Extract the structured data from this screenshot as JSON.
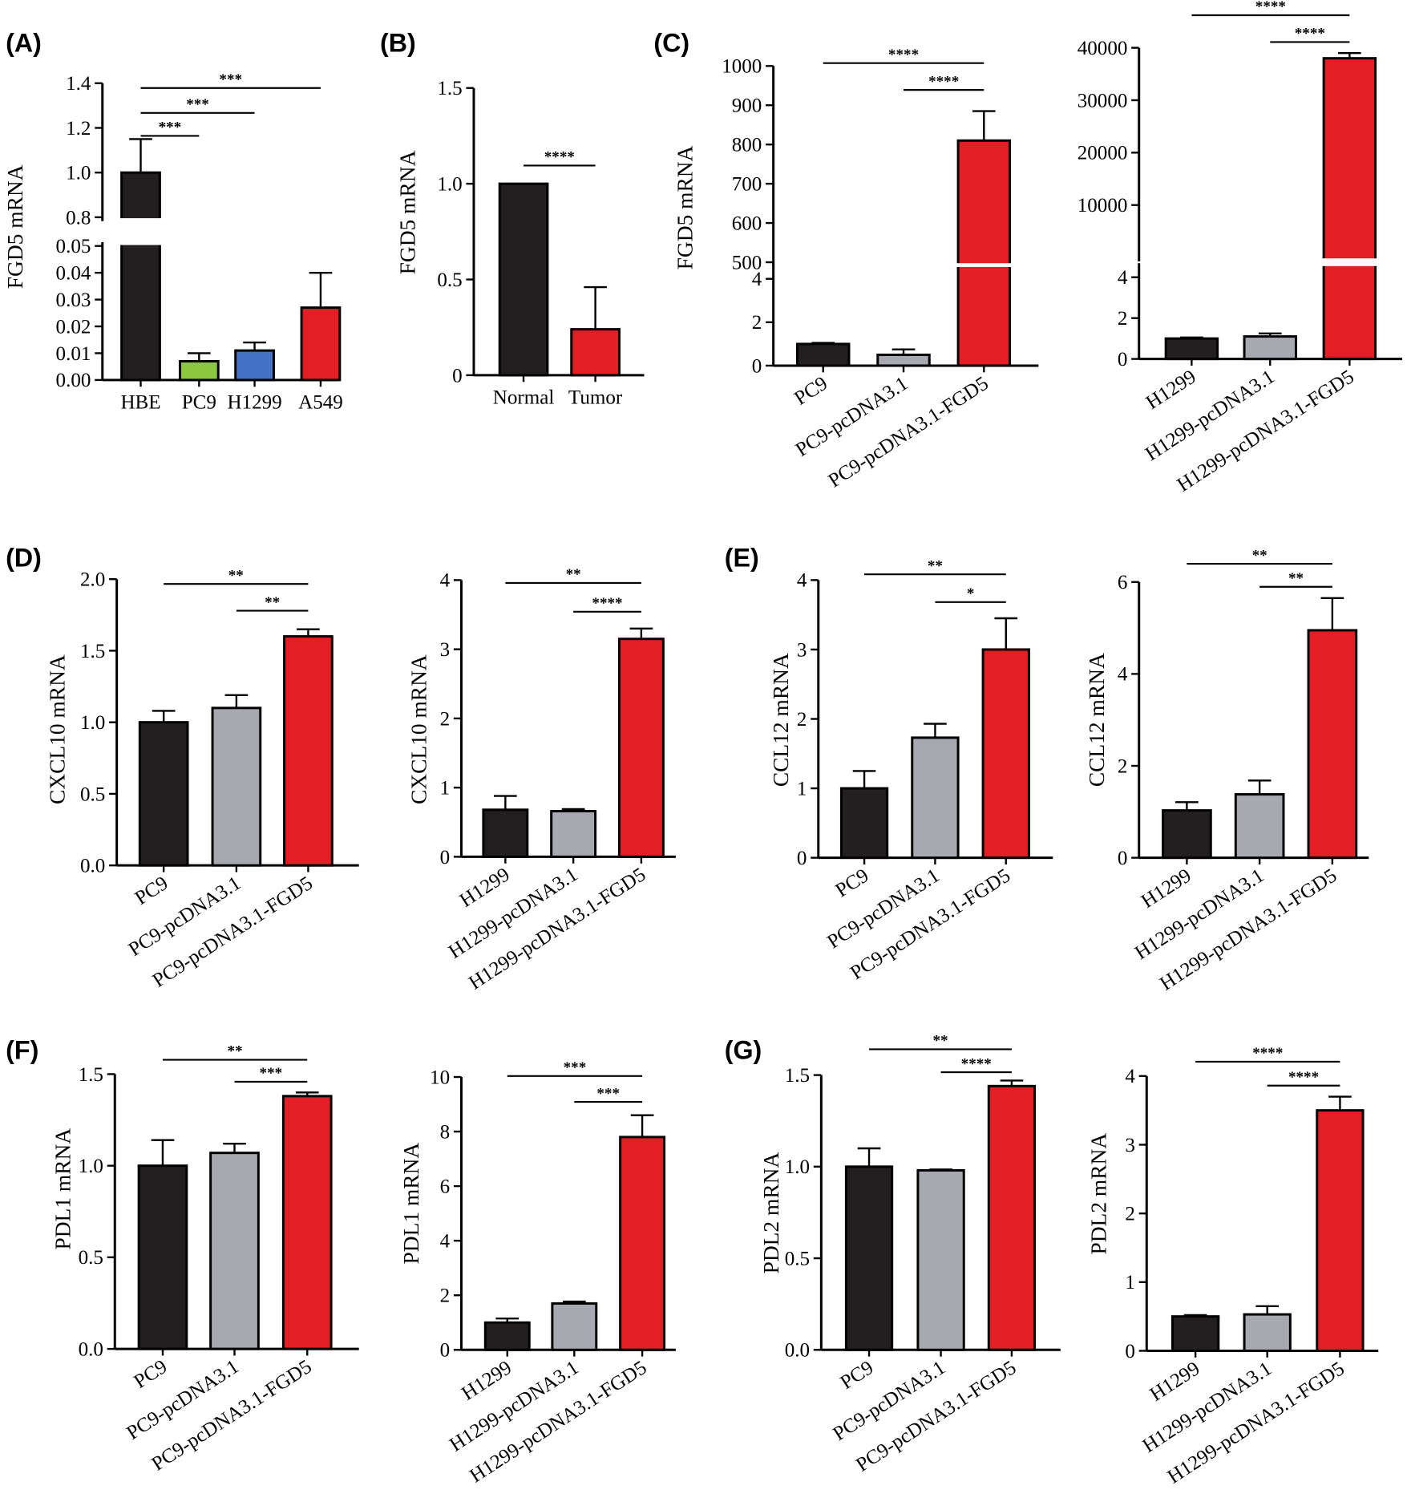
{
  "colors": {
    "black": "#231f20",
    "gray": "#a7a9b0",
    "red": "#e31e24",
    "green": "#8dc63f",
    "blue": "#4472c4"
  },
  "chart_data": [
    {
      "panel": "(A)",
      "type": "bar",
      "ylabel": "FGD5 mRNA",
      "categories": [
        "HBE",
        "PC9",
        "H1299",
        "A549"
      ],
      "values": [
        1.0,
        0.007,
        0.011,
        0.027
      ],
      "errors": [
        0.15,
        0.003,
        0.003,
        0.013
      ],
      "bar_colors": [
        "black",
        "green",
        "blue",
        "red"
      ],
      "yticks_lower": [
        "0.00",
        "0.01",
        "0.02",
        "0.03",
        "0.04",
        "0.05"
      ],
      "yticks_upper": [
        "0.8",
        "1.0",
        "1.2",
        "1.4"
      ],
      "axis_break": {
        "lower": [
          0,
          0.05
        ],
        "upper": [
          0.8,
          1.4
        ]
      },
      "significance": [
        {
          "from": 0,
          "to": 1,
          "label": "***"
        },
        {
          "from": 0,
          "to": 2,
          "label": "***"
        },
        {
          "from": 0,
          "to": 3,
          "label": "***"
        }
      ]
    },
    {
      "panel": "(B)",
      "type": "bar",
      "ylabel": "FGD5 mRNA",
      "categories": [
        "Normal",
        "Tumor"
      ],
      "values": [
        1.0,
        0.24
      ],
      "errors": [
        0,
        0.22
      ],
      "bar_colors": [
        "black",
        "red"
      ],
      "yticks_lower": [
        "0",
        "0.5",
        "1.0",
        "1.5"
      ],
      "ylim": [
        0,
        1.5
      ],
      "significance": [
        {
          "from": 0,
          "to": 1,
          "label": "****"
        }
      ]
    },
    {
      "panel": "(C)",
      "type": "bar",
      "ylabel": "FGD5 mRNA",
      "categories": [
        "PC9",
        "PC9-pcDNA3.1",
        "PC9-pcDNA3.1-FGD5"
      ],
      "values": [
        1.0,
        0.5,
        810
      ],
      "errors": [
        0.05,
        0.25,
        75
      ],
      "bar_colors": [
        "black",
        "gray",
        "red"
      ],
      "yticks_lower": [
        "0",
        "2",
        "4"
      ],
      "yticks_upper": [
        "500",
        "600",
        "700",
        "800",
        "900",
        "1000"
      ],
      "axis_break": {
        "lower": [
          0,
          4.5
        ],
        "upper": [
          500,
          1000
        ]
      },
      "significance": [
        {
          "from": 0,
          "to": 2,
          "label": "****"
        },
        {
          "from": 1,
          "to": 2,
          "label": "****"
        }
      ]
    },
    {
      "panel": "",
      "type": "bar",
      "ylabel": "",
      "categories": [
        "H1299",
        "H1299-pcDNA3.1",
        "H1299-pcDNA3.1-FGD5"
      ],
      "values": [
        1.0,
        1.1,
        38000
      ],
      "errors": [
        0.05,
        0.15,
        1000
      ],
      "bar_colors": [
        "black",
        "gray",
        "red"
      ],
      "yticks_lower": [
        "0",
        "2",
        "4"
      ],
      "yticks_upper": [
        "10000",
        "20000",
        "30000",
        "40000"
      ],
      "axis_break": {
        "lower": [
          0,
          4.5
        ],
        "upper": [
          0,
          40000
        ]
      },
      "significance": [
        {
          "from": 0,
          "to": 2,
          "label": "****"
        },
        {
          "from": 1,
          "to": 2,
          "label": "****"
        }
      ]
    },
    {
      "panel": "(D)",
      "type": "bar",
      "ylabel": "CXCL10 mRNA",
      "categories": [
        "PC9",
        "PC9-pcDNA3.1",
        "PC9-pcDNA3.1-FGD5"
      ],
      "values": [
        1.0,
        1.1,
        1.6
      ],
      "errors": [
        0.08,
        0.09,
        0.05
      ],
      "bar_colors": [
        "black",
        "gray",
        "red"
      ],
      "yticks_lower": [
        "0.0",
        "0.5",
        "1.0",
        "1.5",
        "2.0"
      ],
      "ylim": [
        0,
        2.0
      ],
      "significance": [
        {
          "from": 0,
          "to": 2,
          "label": "**"
        },
        {
          "from": 1,
          "to": 2,
          "label": "**"
        }
      ]
    },
    {
      "panel": "",
      "type": "bar",
      "ylabel": "CXCL10 mRNA",
      "categories": [
        "H1299",
        "H1299-pcDNA3.1",
        "H1299-pcDNA3.1-FGD5"
      ],
      "values": [
        0.68,
        0.66,
        3.15
      ],
      "errors": [
        0.2,
        0.03,
        0.15
      ],
      "bar_colors": [
        "black",
        "gray",
        "red"
      ],
      "yticks_lower": [
        "0",
        "1",
        "2",
        "3",
        "4"
      ],
      "ylim": [
        0,
        4
      ],
      "significance": [
        {
          "from": 0,
          "to": 2,
          "label": "**"
        },
        {
          "from": 1,
          "to": 2,
          "label": "****"
        }
      ]
    },
    {
      "panel": "(E)",
      "type": "bar",
      "ylabel": "CCL12 mRNA",
      "categories": [
        "PC9",
        "PC9-pcDNA3.1",
        "PC9-pcDNA3.1-FGD5"
      ],
      "values": [
        1.0,
        1.73,
        3.0
      ],
      "errors": [
        0.25,
        0.2,
        0.45
      ],
      "bar_colors": [
        "black",
        "gray",
        "red"
      ],
      "yticks_lower": [
        "0",
        "1",
        "2",
        "3",
        "4"
      ],
      "ylim": [
        0,
        4
      ],
      "significance": [
        {
          "from": 0,
          "to": 2,
          "label": "**"
        },
        {
          "from": 1,
          "to": 2,
          "label": "*"
        }
      ]
    },
    {
      "panel": "",
      "type": "bar",
      "ylabel": "CCL12 mRNA",
      "categories": [
        "H1299",
        "H1299-pcDNA3.1",
        "H1299-pcDNA3.1-FGD5"
      ],
      "values": [
        1.03,
        1.38,
        4.95
      ],
      "errors": [
        0.18,
        0.3,
        0.7
      ],
      "bar_colors": [
        "black",
        "gray",
        "red"
      ],
      "yticks_lower": [
        "0",
        "2",
        "4",
        "6"
      ],
      "ylim": [
        0,
        6
      ],
      "significance": [
        {
          "from": 0,
          "to": 2,
          "label": "**"
        },
        {
          "from": 1,
          "to": 2,
          "label": "**"
        }
      ]
    },
    {
      "panel": "(F)",
      "type": "bar",
      "ylabel": "PDL1 mRNA",
      "categories": [
        "PC9",
        "PC9-pcDNA3.1",
        "PC9-pcDNA3.1-FGD5"
      ],
      "values": [
        1.0,
        1.07,
        1.38
      ],
      "errors": [
        0.14,
        0.05,
        0.02
      ],
      "bar_colors": [
        "black",
        "gray",
        "red"
      ],
      "yticks_lower": [
        "0.0",
        "0.5",
        "1.0",
        "1.5"
      ],
      "ylim": [
        0,
        1.5
      ],
      "significance": [
        {
          "from": 0,
          "to": 2,
          "label": "**"
        },
        {
          "from": 1,
          "to": 2,
          "label": "***"
        }
      ]
    },
    {
      "panel": "",
      "type": "bar",
      "ylabel": "PDL1 mRNA",
      "categories": [
        "H1299",
        "H1299-pcDNA3.1",
        "H1299-pcDNA3.1-FGD5"
      ],
      "values": [
        1.0,
        1.7,
        7.8
      ],
      "errors": [
        0.15,
        0.07,
        0.8
      ],
      "bar_colors": [
        "black",
        "gray",
        "red"
      ],
      "yticks_lower": [
        "0",
        "2",
        "4",
        "6",
        "8",
        "10"
      ],
      "ylim": [
        0,
        10
      ],
      "significance": [
        {
          "from": 0,
          "to": 2,
          "label": "***"
        },
        {
          "from": 1,
          "to": 2,
          "label": "***"
        }
      ]
    },
    {
      "panel": "(G)",
      "type": "bar",
      "ylabel": "PDL2 mRNA",
      "categories": [
        "PC9",
        "PC9-pcDNA3.1",
        "PC9-pcDNA3.1-FGD5"
      ],
      "values": [
        1.0,
        0.98,
        1.44
      ],
      "errors": [
        0.1,
        0.005,
        0.03
      ],
      "bar_colors": [
        "black",
        "gray",
        "red"
      ],
      "yticks_lower": [
        "0.0",
        "0.5",
        "1.0",
        "1.5"
      ],
      "ylim": [
        0,
        1.5
      ],
      "significance": [
        {
          "from": 0,
          "to": 2,
          "label": "**"
        },
        {
          "from": 1,
          "to": 2,
          "label": "****"
        }
      ]
    },
    {
      "panel": "",
      "type": "bar",
      "ylabel": "PDL2 mRNA",
      "categories": [
        "H1299",
        "H1299-pcDNA3.1",
        "H1299-pcDNA3.1-FGD5"
      ],
      "values": [
        0.5,
        0.53,
        3.5
      ],
      "errors": [
        0.02,
        0.12,
        0.2
      ],
      "bar_colors": [
        "black",
        "gray",
        "red"
      ],
      "yticks_lower": [
        "0",
        "1",
        "2",
        "3",
        "4"
      ],
      "ylim": [
        0,
        4
      ],
      "significance": [
        {
          "from": 0,
          "to": 2,
          "label": "****"
        },
        {
          "from": 1,
          "to": 2,
          "label": "****"
        }
      ]
    }
  ]
}
